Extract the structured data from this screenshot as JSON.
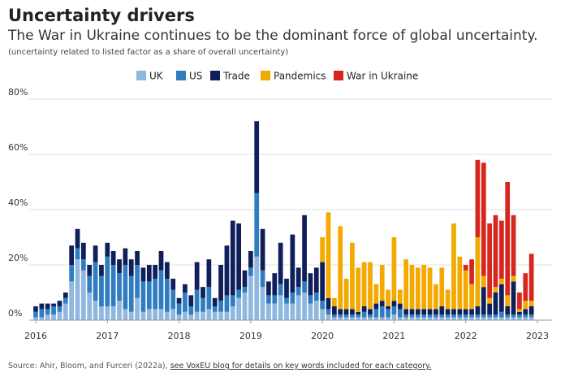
{
  "chart_data": {
    "type": "stacked-bar",
    "title": "Uncertainty drivers",
    "subtitle": "The War in Ukraine continues to be the dominant force of global uncertainty.",
    "note": "(uncertainty related to listed factor as a share of overall uncertainty)",
    "source": "Source: Ahir, Bloom, and Furceri (2022a),",
    "source_link": "see VoxEU blog for details on key words included for each category.",
    "xlim": [
      2016,
      2023
    ],
    "xticks": [
      2016,
      2017,
      2018,
      2019,
      2020,
      2021,
      2022,
      2023
    ],
    "ylim": [
      0,
      80
    ],
    "yticks": [
      {
        "value": 0,
        "label": "0%"
      },
      {
        "value": 20,
        "label": "20%"
      },
      {
        "value": 40,
        "label": "40%"
      },
      {
        "value": 60,
        "label": "60%"
      },
      {
        "value": 80,
        "label": "80%"
      }
    ],
    "grid": true,
    "legend": "top",
    "series": [
      {
        "name": "UK",
        "color": "#8fb8e0",
        "values": [
          1,
          1,
          2,
          2,
          3,
          6,
          14,
          22,
          18,
          10,
          7,
          5,
          5,
          5,
          7,
          4,
          3,
          8,
          3,
          4,
          4,
          4,
          3,
          4,
          2,
          3,
          2,
          3,
          3,
          4,
          3,
          3,
          3,
          5,
          8,
          10,
          16,
          23,
          12,
          6,
          6,
          9,
          6,
          6,
          9,
          10,
          6,
          7,
          4,
          2,
          1,
          1,
          1,
          1,
          1,
          1,
          1,
          1,
          1,
          1,
          2,
          1,
          1,
          1,
          1,
          1,
          1,
          1,
          1,
          1,
          1,
          1,
          1,
          1,
          1,
          1,
          1,
          1,
          1,
          1,
          1,
          1,
          1,
          1
        ]
      },
      {
        "name": "US",
        "color": "#2f7dc0",
        "values": [
          2,
          3,
          2,
          3,
          2,
          2,
          6,
          4,
          4,
          6,
          14,
          11,
          18,
          15,
          10,
          16,
          13,
          12,
          11,
          10,
          11,
          14,
          12,
          7,
          4,
          7,
          3,
          8,
          5,
          8,
          2,
          4,
          6,
          4,
          3,
          2,
          3,
          23,
          6,
          3,
          3,
          4,
          2,
          4,
          3,
          4,
          3,
          3,
          3,
          2,
          1,
          1,
          1,
          1,
          1,
          2,
          1,
          3,
          4,
          3,
          3,
          3,
          1,
          1,
          1,
          1,
          1,
          1,
          1,
          1,
          1,
          1,
          1,
          1,
          1,
          1,
          1,
          1,
          2,
          1,
          1,
          1,
          1,
          1
        ]
      },
      {
        "name": "Trade",
        "color": "#0e1f5b",
        "values": [
          2,
          2,
          2,
          1,
          2,
          2,
          7,
          7,
          6,
          4,
          6,
          4,
          5,
          5,
          5,
          6,
          6,
          5,
          5,
          6,
          5,
          7,
          6,
          4,
          2,
          3,
          4,
          10,
          4,
          10,
          3,
          13,
          18,
          27,
          24,
          6,
          6,
          26,
          15,
          5,
          8,
          15,
          7,
          21,
          7,
          24,
          8,
          9,
          14,
          4,
          3,
          2,
          2,
          2,
          1,
          2,
          2,
          2,
          2,
          1,
          2,
          2,
          2,
          2,
          2,
          2,
          2,
          2,
          3,
          2,
          2,
          2,
          2,
          2,
          3,
          10,
          4,
          8,
          10,
          3,
          12,
          1,
          2,
          3
        ]
      },
      {
        "name": "Pandemics",
        "color": "#f2a900",
        "values": [
          0,
          0,
          0,
          0,
          0,
          0,
          0,
          0,
          0,
          0,
          0,
          0,
          0,
          0,
          0,
          0,
          0,
          0,
          0,
          0,
          0,
          0,
          0,
          0,
          0,
          0,
          0,
          0,
          0,
          0,
          0,
          0,
          0,
          0,
          0,
          0,
          0,
          0,
          0,
          0,
          0,
          0,
          0,
          0,
          0,
          0,
          0,
          0,
          9,
          31,
          3,
          30,
          11,
          24,
          16,
          16,
          17,
          7,
          13,
          6,
          23,
          5,
          18,
          16,
          15,
          16,
          15,
          9,
          14,
          7,
          31,
          19,
          14,
          9,
          25,
          4,
          2,
          2,
          2,
          4,
          2,
          1,
          3,
          2
        ]
      },
      {
        "name": "War in Ukraine",
        "color": "#d7261e",
        "values": [
          0,
          0,
          0,
          0,
          0,
          0,
          0,
          0,
          0,
          0,
          0,
          0,
          0,
          0,
          0,
          0,
          0,
          0,
          0,
          0,
          0,
          0,
          0,
          0,
          0,
          0,
          0,
          0,
          0,
          0,
          0,
          0,
          0,
          0,
          0,
          0,
          0,
          0,
          0,
          0,
          0,
          0,
          0,
          0,
          0,
          0,
          0,
          0,
          0,
          0,
          0,
          0,
          0,
          0,
          0,
          0,
          0,
          0,
          0,
          0,
          0,
          0,
          0,
          0,
          0,
          0,
          0,
          0,
          0,
          0,
          0,
          0,
          2,
          9,
          28,
          41,
          27,
          26,
          21,
          41,
          22,
          6,
          10,
          17
        ]
      }
    ]
  }
}
